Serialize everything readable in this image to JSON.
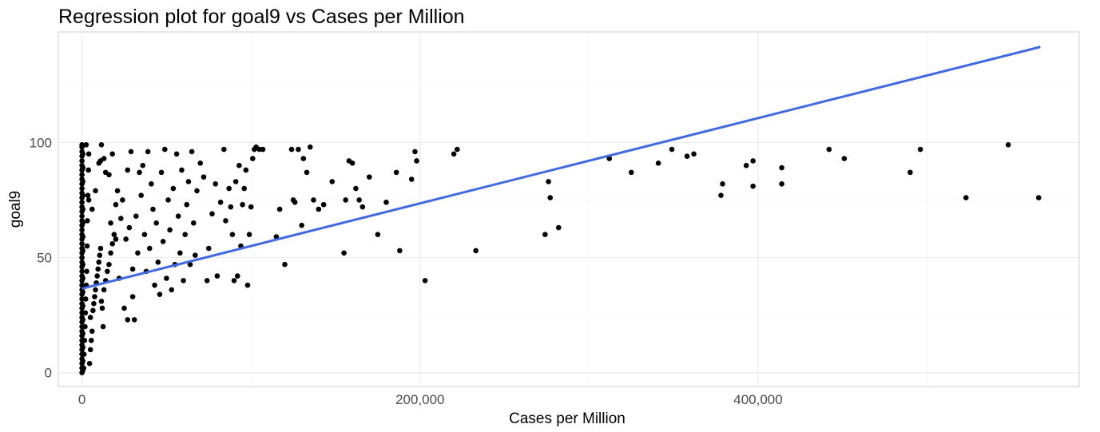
{
  "chart_data": {
    "type": "scatter",
    "title": "Regression plot for goal9 vs Cases per Million",
    "xlabel": "Cases per Million",
    "ylabel": "goal9",
    "xlim": [
      -14000,
      590000
    ],
    "ylim": [
      -6,
      148
    ],
    "x_ticks": [
      0,
      200000,
      400000
    ],
    "x_tick_labels": [
      "0",
      "200,000",
      "400,000"
    ],
    "y_ticks": [
      0,
      50,
      100
    ],
    "y_tick_labels": [
      "0",
      "50",
      "100"
    ],
    "grid": true,
    "legend": "none",
    "point_color": "#000000",
    "line_color": "#4169e1",
    "regression_line": {
      "x": [
        0,
        567000
      ],
      "y": [
        36.5,
        141.5
      ]
    },
    "series": [
      {
        "values": [
          [
            0,
            0
          ],
          [
            0,
            2
          ],
          [
            0,
            4
          ],
          [
            0,
            6
          ],
          [
            0,
            8
          ],
          [
            0,
            10
          ],
          [
            0,
            12
          ],
          [
            0,
            14
          ],
          [
            0,
            16
          ],
          [
            0,
            18
          ],
          [
            0,
            20
          ],
          [
            0,
            22
          ],
          [
            0,
            24
          ],
          [
            0,
            26
          ],
          [
            0,
            28
          ],
          [
            0,
            30
          ],
          [
            0,
            32
          ],
          [
            0,
            34
          ],
          [
            0,
            36
          ],
          [
            0,
            38
          ],
          [
            0,
            40
          ],
          [
            0,
            42
          ],
          [
            0,
            44
          ],
          [
            0,
            46
          ],
          [
            0,
            48
          ],
          [
            0,
            50
          ],
          [
            0,
            52
          ],
          [
            0,
            54
          ],
          [
            0,
            56
          ],
          [
            0,
            58
          ],
          [
            0,
            60
          ],
          [
            0,
            62
          ],
          [
            0,
            64
          ],
          [
            0,
            66
          ],
          [
            0,
            68
          ],
          [
            0,
            70
          ],
          [
            0,
            72
          ],
          [
            0,
            74
          ],
          [
            0,
            76
          ],
          [
            0,
            78
          ],
          [
            0,
            80
          ],
          [
            0,
            82
          ],
          [
            0,
            84
          ],
          [
            0,
            86
          ],
          [
            0,
            88
          ],
          [
            0,
            90
          ],
          [
            0,
            92
          ],
          [
            0,
            94
          ],
          [
            0,
            96
          ],
          [
            0,
            98
          ],
          [
            0,
            99
          ],
          [
            500,
            1
          ],
          [
            500,
            5
          ],
          [
            500,
            11
          ],
          [
            500,
            17
          ],
          [
            500,
            23
          ],
          [
            500,
            29
          ],
          [
            500,
            35
          ],
          [
            500,
            41
          ],
          [
            500,
            47
          ],
          [
            500,
            53
          ],
          [
            500,
            59
          ],
          [
            500,
            65
          ],
          [
            500,
            71
          ],
          [
            500,
            77
          ],
          [
            500,
            83
          ],
          [
            500,
            89
          ],
          [
            500,
            95
          ],
          [
            1000,
            2
          ],
          [
            1200,
            8
          ],
          [
            1500,
            14
          ],
          [
            1800,
            20
          ],
          [
            2000,
            26
          ],
          [
            2200,
            32
          ],
          [
            2500,
            38
          ],
          [
            2800,
            44
          ],
          [
            3000,
            55
          ],
          [
            3200,
            66
          ],
          [
            3500,
            77
          ],
          [
            3800,
            88
          ],
          [
            4000,
            95
          ],
          [
            2500,
            99
          ],
          [
            4500,
            4
          ],
          [
            5000,
            10
          ],
          [
            5500,
            14
          ],
          [
            6000,
            18
          ],
          [
            5000,
            24
          ],
          [
            6500,
            27
          ],
          [
            7000,
            30
          ],
          [
            7500,
            33
          ],
          [
            8000,
            36
          ],
          [
            8500,
            39
          ],
          [
            9000,
            42
          ],
          [
            9500,
            45
          ],
          [
            10000,
            48
          ],
          [
            10500,
            51
          ],
          [
            11000,
            54
          ],
          [
            11500,
            31
          ],
          [
            12000,
            28
          ],
          [
            12500,
            20
          ],
          [
            13000,
            36
          ],
          [
            14000,
            40
          ],
          [
            15000,
            44
          ],
          [
            16000,
            47
          ],
          [
            17000,
            52
          ],
          [
            18000,
            56
          ],
          [
            19000,
            60
          ],
          [
            4000,
            75
          ],
          [
            6000,
            71
          ],
          [
            8000,
            79
          ],
          [
            10000,
            91
          ],
          [
            11000,
            92
          ],
          [
            11500,
            99
          ],
          [
            13000,
            93
          ],
          [
            14000,
            87
          ],
          [
            16000,
            86
          ],
          [
            17000,
            65
          ],
          [
            18000,
            95
          ],
          [
            20000,
            58
          ],
          [
            20000,
            73
          ],
          [
            21000,
            79
          ],
          [
            22000,
            41
          ],
          [
            23000,
            67
          ],
          [
            24000,
            75
          ],
          [
            25000,
            28
          ],
          [
            26000,
            58
          ],
          [
            27000,
            88
          ],
          [
            27000,
            23
          ],
          [
            28000,
            63
          ],
          [
            29000,
            96
          ],
          [
            30000,
            33
          ],
          [
            30000,
            45
          ],
          [
            31000,
            23
          ],
          [
            32000,
            68
          ],
          [
            33000,
            52
          ],
          [
            34000,
            87
          ],
          [
            35000,
            77
          ],
          [
            36000,
            90
          ],
          [
            37000,
            60
          ],
          [
            38000,
            44
          ],
          [
            39000,
            96
          ],
          [
            40000,
            54
          ],
          [
            41000,
            82
          ],
          [
            42000,
            71
          ],
          [
            43000,
            38
          ],
          [
            44000,
            65
          ],
          [
            45000,
            48
          ],
          [
            46000,
            34
          ],
          [
            47000,
            87
          ],
          [
            48000,
            57
          ],
          [
            49000,
            97
          ],
          [
            50000,
            41
          ],
          [
            51000,
            75
          ],
          [
            52000,
            62
          ],
          [
            53000,
            36
          ],
          [
            54000,
            80
          ],
          [
            55000,
            47
          ],
          [
            56000,
            95
          ],
          [
            57000,
            68
          ],
          [
            58000,
            52
          ],
          [
            59000,
            88
          ],
          [
            60000,
            40
          ],
          [
            61000,
            60
          ],
          [
            62000,
            73
          ],
          [
            63000,
            83
          ],
          [
            64000,
            47
          ],
          [
            65000,
            96
          ],
          [
            66000,
            65
          ],
          [
            67000,
            51
          ],
          [
            68000,
            79
          ],
          [
            70000,
            91
          ],
          [
            72000,
            85
          ],
          [
            74000,
            40
          ],
          [
            75000,
            54
          ],
          [
            77000,
            69
          ],
          [
            79000,
            82
          ],
          [
            80000,
            42
          ],
          [
            82000,
            74
          ],
          [
            84000,
            97
          ],
          [
            85000,
            66
          ],
          [
            87000,
            80
          ],
          [
            88000,
            72
          ],
          [
            89000,
            60
          ],
          [
            90000,
            40
          ],
          [
            91000,
            83
          ],
          [
            92000,
            42
          ],
          [
            93000,
            90
          ],
          [
            94000,
            55
          ],
          [
            95000,
            73
          ],
          [
            96000,
            80
          ],
          [
            97000,
            88
          ],
          [
            98000,
            38
          ],
          [
            99000,
            60
          ],
          [
            100000,
            72
          ],
          [
            101000,
            93
          ],
          [
            102000,
            97
          ],
          [
            103000,
            98
          ],
          [
            105000,
            97
          ],
          [
            107000,
            97
          ],
          [
            115000,
            59
          ],
          [
            117000,
            71
          ],
          [
            120000,
            47
          ],
          [
            124000,
            97
          ],
          [
            125000,
            75
          ],
          [
            126000,
            74
          ],
          [
            128000,
            97
          ],
          [
            130000,
            64
          ],
          [
            131000,
            93
          ],
          [
            133000,
            87
          ],
          [
            135000,
            98
          ],
          [
            137000,
            75
          ],
          [
            140000,
            71
          ],
          [
            143000,
            73
          ],
          [
            148000,
            83
          ],
          [
            155000,
            52
          ],
          [
            156000,
            75
          ],
          [
            158000,
            92
          ],
          [
            160000,
            91
          ],
          [
            162000,
            80
          ],
          [
            164000,
            75
          ],
          [
            166000,
            72
          ],
          [
            170000,
            85
          ],
          [
            175000,
            60
          ],
          [
            180000,
            74
          ],
          [
            186000,
            87
          ],
          [
            188000,
            53
          ],
          [
            195000,
            84
          ],
          [
            197000,
            96
          ],
          [
            198000,
            92
          ],
          [
            203000,
            40
          ],
          [
            220000,
            95
          ],
          [
            222000,
            97
          ],
          [
            233000,
            53
          ],
          [
            274000,
            60
          ],
          [
            276000,
            83
          ],
          [
            277000,
            76
          ],
          [
            282000,
            63
          ],
          [
            312000,
            93
          ],
          [
            325000,
            87
          ],
          [
            341000,
            91
          ],
          [
            349000,
            97
          ],
          [
            358000,
            94
          ],
          [
            362000,
            95
          ],
          [
            378000,
            77
          ],
          [
            379000,
            82
          ],
          [
            393000,
            90
          ],
          [
            397000,
            81
          ],
          [
            397000,
            92
          ],
          [
            414000,
            82
          ],
          [
            414000,
            89
          ],
          [
            442000,
            97
          ],
          [
            451000,
            93
          ],
          [
            490000,
            87
          ],
          [
            496000,
            97
          ],
          [
            523000,
            76
          ],
          [
            548000,
            99
          ],
          [
            566000,
            76
          ]
        ]
      }
    ]
  }
}
